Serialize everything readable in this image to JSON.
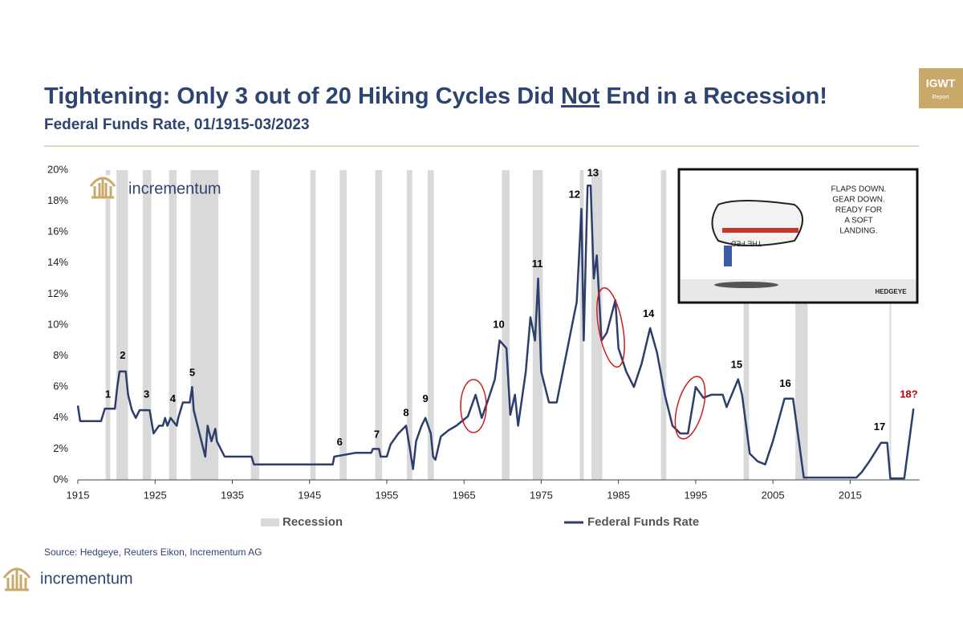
{
  "chart_data": {
    "type": "line",
    "title_parts": [
      "Tightening: Only 3 out of 20 Hiking Cycles Did ",
      "Not",
      " End in a Recession!"
    ],
    "subtitle": "Federal Funds Rate, 01/1915-03/2023",
    "brand": "incrementum",
    "badge": "IGWT",
    "badge_sub": "Report",
    "source": "Source: Hedgeye, Reuters Eikon, Incrementum AG",
    "cartoon": {
      "speech": [
        "FLAPS DOWN.",
        "GEAR DOWN.",
        "READY FOR",
        "A SOFT",
        "LANDING."
      ],
      "plane_label": "THE FED",
      "signature": "HEDGEYE"
    },
    "xlim": [
      1915,
      2024
    ],
    "xticks": [
      1915,
      1925,
      1935,
      1945,
      1955,
      1965,
      1975,
      1985,
      1995,
      2005,
      2015
    ],
    "ylim": [
      0,
      20
    ],
    "yticks": [
      {
        "value": 0,
        "label": "0%"
      },
      {
        "value": 2,
        "label": "2%"
      },
      {
        "value": 4,
        "label": "4%"
      },
      {
        "value": 6,
        "label": "6%"
      },
      {
        "value": 8,
        "label": "8%"
      },
      {
        "value": 10,
        "label": "10%"
      },
      {
        "value": 12,
        "label": "12%"
      },
      {
        "value": 14,
        "label": "14%"
      },
      {
        "value": 16,
        "label": "16%"
      },
      {
        "value": 18,
        "label": "18%"
      },
      {
        "value": 20,
        "label": "20%"
      }
    ],
    "recession_name": "Recession",
    "recession_color": "#d9d9d9",
    "recessions": [
      [
        1918.6,
        1919.2
      ],
      [
        1920.0,
        1921.5
      ],
      [
        1923.4,
        1924.5
      ],
      [
        1926.8,
        1927.8
      ],
      [
        1929.6,
        1933.2
      ],
      [
        1937.4,
        1938.5
      ],
      [
        1945.1,
        1945.8
      ],
      [
        1948.9,
        1949.8
      ],
      [
        1953.5,
        1954.4
      ],
      [
        1957.6,
        1958.3
      ],
      [
        1960.3,
        1961.1
      ],
      [
        1969.9,
        1970.9
      ],
      [
        1973.9,
        1975.2
      ],
      [
        1980.0,
        1980.5
      ],
      [
        1981.5,
        1982.9
      ],
      [
        1990.5,
        1991.2
      ],
      [
        2001.2,
        2001.9
      ],
      [
        2007.9,
        2009.5
      ],
      [
        2020.1,
        2020.3
      ]
    ],
    "x": [
      1915,
      1915.3,
      1918,
      1918.5,
      1919.8,
      1920.1,
      1920.4,
      1921.2,
      1921.5,
      1922,
      1922.5,
      1923,
      1924.3,
      1924.8,
      1925.5,
      1926,
      1926.3,
      1926.6,
      1927,
      1927.8,
      1928,
      1928.6,
      1929.5,
      1929.8,
      1930,
      1930.5,
      1931,
      1931.5,
      1931.8,
      1932.3,
      1932.8,
      1933,
      1933.3,
      1934,
      1937.5,
      1937.8,
      1946,
      1948,
      1948.2,
      1951,
      1953,
      1953.2,
      1954,
      1954.2,
      1955,
      1955.5,
      1956.5,
      1957.5,
      1958,
      1958.4,
      1958.8,
      1959.5,
      1960,
      1960.7,
      1961,
      1961.3,
      1962,
      1963,
      1964,
      1965.5,
      1966.5,
      1967.3,
      1968,
      1969,
      1969.6,
      1970.5,
      1971,
      1971.6,
      1972,
      1973,
      1973.6,
      1974.2,
      1974.6,
      1975,
      1975.5,
      1976,
      1977,
      1978,
      1979,
      1979.6,
      1980.2,
      1980.5,
      1980.8,
      1981,
      1981.4,
      1981.8,
      1982.2,
      1982.8,
      1983.5,
      1984.6,
      1985,
      1986,
      1987,
      1988,
      1989.1,
      1990,
      1991,
      1992,
      1993,
      1994,
      1995,
      1996,
      1997,
      1998.5,
      1999,
      2000.5,
      2001,
      2002,
      2003,
      2004,
      2005,
      2006.5,
      2007.6,
      2008.5,
      2009,
      2015.8,
      2016.5,
      2017.5,
      2019,
      2019.8,
      2020.2,
      2022,
      2023.2
    ],
    "series": [
      {
        "name": "Federal Funds Rate",
        "color": "#2c3e6b",
        "values": [
          4.8,
          3.8,
          3.8,
          4.6,
          4.6,
          6,
          7,
          7,
          5.5,
          4.5,
          4,
          4.5,
          4.5,
          3,
          3.5,
          3.5,
          4,
          3.5,
          4,
          3.5,
          4,
          5,
          5,
          6,
          4.5,
          3.5,
          2.5,
          1.5,
          3.5,
          2.5,
          3.3,
          2.5,
          2.2,
          1.5,
          1.5,
          1,
          1,
          1,
          1.5,
          1.75,
          1.75,
          2,
          2,
          1.5,
          1.5,
          2.3,
          3,
          3.5,
          2,
          0.7,
          2.5,
          3.5,
          4,
          3,
          1.5,
          1.3,
          2.8,
          3.2,
          3.5,
          4.1,
          5.5,
          4,
          5,
          6.5,
          9,
          8.5,
          4.2,
          5.5,
          3.5,
          7,
          10.5,
          9,
          13,
          7,
          6,
          5,
          5,
          7.5,
          10,
          11.5,
          17.5,
          9,
          15,
          19,
          19,
          13,
          14.5,
          9,
          9.5,
          11.6,
          8.5,
          7,
          6,
          7.5,
          9.8,
          8.2,
          5.5,
          3.5,
          3,
          3,
          6,
          5.3,
          5.5,
          5.5,
          4.7,
          6.5,
          5.5,
          1.7,
          1.2,
          1,
          2.5,
          5.25,
          5.25,
          2,
          0.15,
          0.15,
          0.5,
          1.2,
          2.4,
          2.4,
          0.1,
          0.1,
          4.6
        ]
      }
    ],
    "annotations": [
      {
        "text": "1",
        "x": 1918.9,
        "y": 5.5,
        "color": "#000000"
      },
      {
        "text": "2",
        "x": 1920.8,
        "y": 8.0,
        "color": "#000000"
      },
      {
        "text": "3",
        "x": 1923.9,
        "y": 5.5,
        "color": "#000000"
      },
      {
        "text": "4",
        "x": 1927.3,
        "y": 5.2,
        "color": "#000000"
      },
      {
        "text": "5",
        "x": 1929.8,
        "y": 6.9,
        "color": "#000000"
      },
      {
        "text": "6",
        "x": 1948.9,
        "y": 2.4,
        "color": "#000000"
      },
      {
        "text": "7",
        "x": 1953.7,
        "y": 2.9,
        "color": "#000000"
      },
      {
        "text": "8",
        "x": 1957.5,
        "y": 4.3,
        "color": "#000000"
      },
      {
        "text": "9",
        "x": 1960.0,
        "y": 5.2,
        "color": "#000000"
      },
      {
        "text": "10",
        "x": 1969.5,
        "y": 10.0,
        "color": "#000000"
      },
      {
        "text": "11",
        "x": 1974.5,
        "y": 13.9,
        "color": "#000000"
      },
      {
        "text": "12",
        "x": 1979.3,
        "y": 18.4,
        "color": "#000000"
      },
      {
        "text": "13",
        "x": 1981.7,
        "y": 19.8,
        "color": "#000000"
      },
      {
        "text": "14",
        "x": 1988.9,
        "y": 10.7,
        "color": "#000000"
      },
      {
        "text": "15",
        "x": 2000.3,
        "y": 7.4,
        "color": "#000000"
      },
      {
        "text": "16",
        "x": 2006.6,
        "y": 6.2,
        "color": "#000000"
      },
      {
        "text": "17",
        "x": 2018.8,
        "y": 3.4,
        "color": "#000000"
      },
      {
        "text": "18?",
        "x": 2022.6,
        "y": 5.5,
        "color": "#c00000"
      }
    ]
  }
}
